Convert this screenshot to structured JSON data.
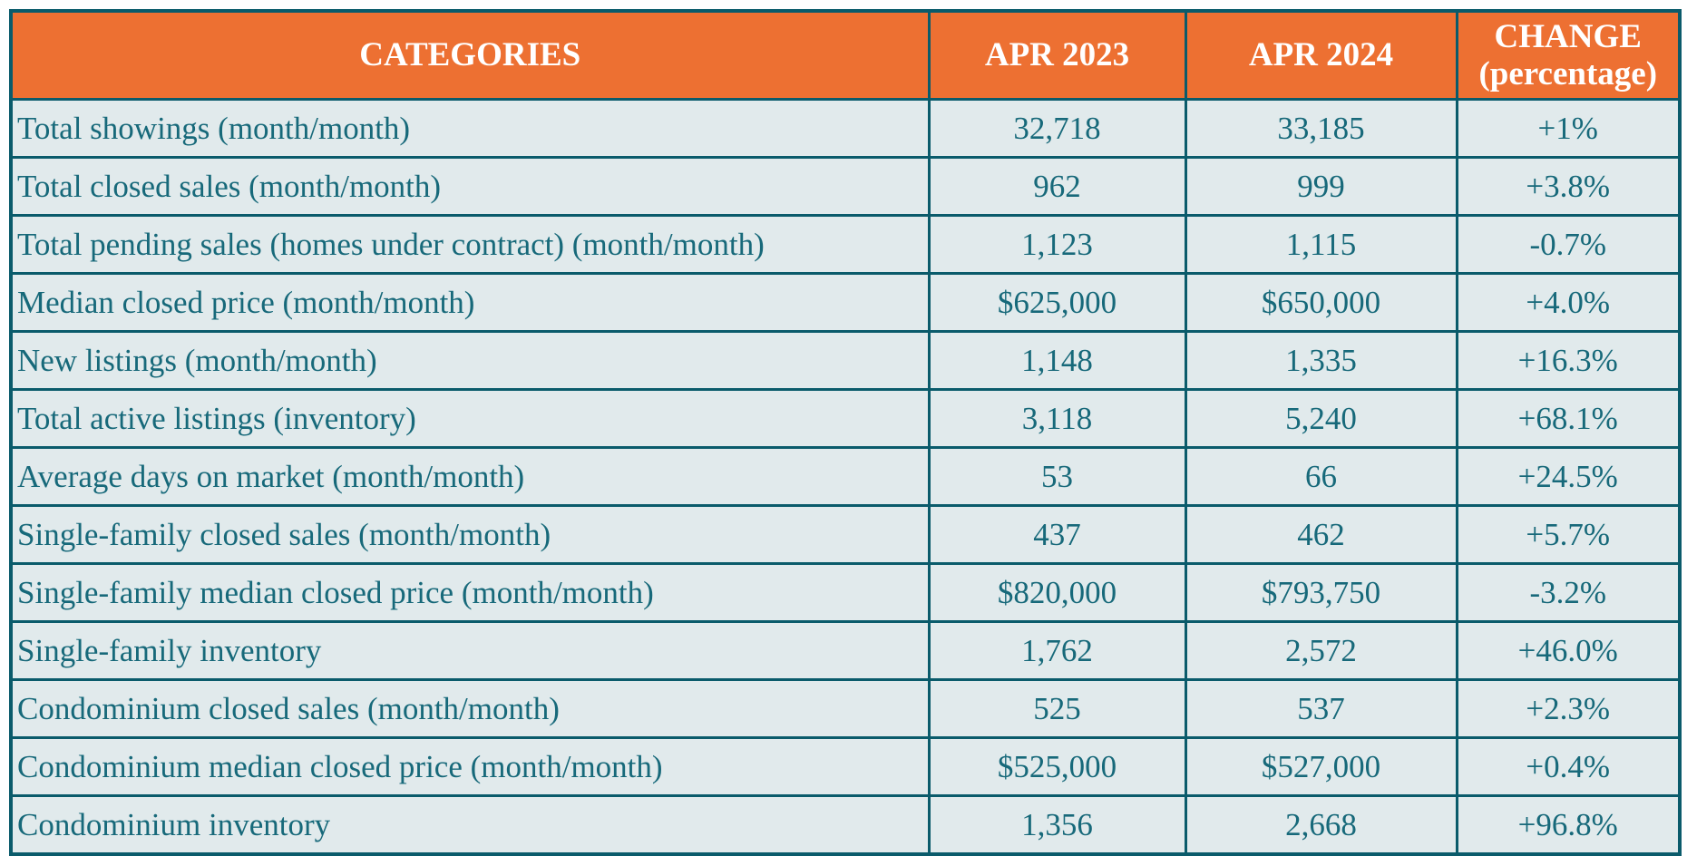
{
  "colors": {
    "header_bg": "#ED7032",
    "header_text": "#FFFFFF",
    "row_bg": "#E1EAEC",
    "body_text": "#17697A",
    "border": "#0A5B6B"
  },
  "chart_data": {
    "type": "table",
    "title": "",
    "columns": [
      "CATEGORIES",
      "APR 2023",
      "APR 2024",
      "CHANGE\n(percentage)"
    ],
    "rows": [
      [
        "Total showings (month/month)",
        "32,718",
        "33,185",
        "+1%"
      ],
      [
        "Total closed sales (month/month)",
        "962",
        "999",
        "+3.8%"
      ],
      [
        "Total pending sales (homes under contract) (month/month)",
        "1,123",
        "1,115",
        "-0.7%"
      ],
      [
        "Median closed price (month/month)",
        "$625,000",
        "$650,000",
        "+4.0%"
      ],
      [
        "New listings (month/month)",
        "1,148",
        "1,335",
        "+16.3%"
      ],
      [
        "Total active listings (inventory)",
        "3,118",
        "5,240",
        "+68.1%"
      ],
      [
        "Average days on market (month/month)",
        "53",
        "66",
        "+24.5%"
      ],
      [
        "Single-family closed sales (month/month)",
        "437",
        "462",
        "+5.7%"
      ],
      [
        "Single-family median closed price (month/month)",
        "$820,000",
        "$793,750",
        "-3.2%"
      ],
      [
        "Single-family inventory",
        "1,762",
        "2,572",
        "+46.0%"
      ],
      [
        "Condominium closed sales (month/month)",
        "525",
        "537",
        "+2.3%"
      ],
      [
        "Condominium median closed price (month/month)",
        "$525,000",
        "$527,000",
        "+0.4%"
      ],
      [
        "Condominium inventory",
        "1,356",
        "2,668",
        "+96.8%"
      ]
    ]
  }
}
